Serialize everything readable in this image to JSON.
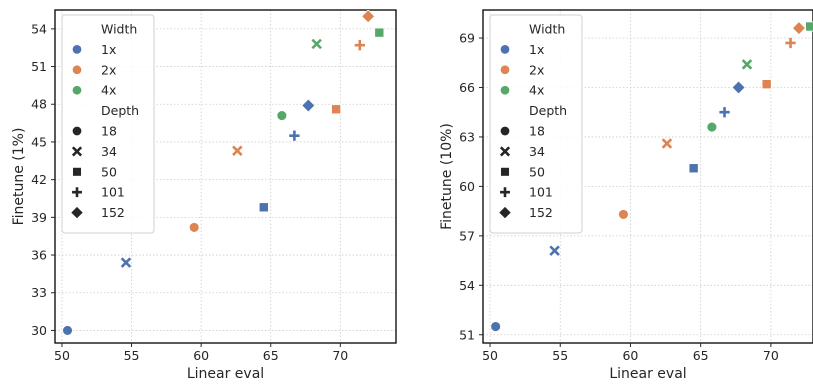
{
  "colors": {
    "1x": "#4c72b0",
    "2x": "#dd8452",
    "4x": "#55a868",
    "marker_neutral": "#262626",
    "grid": "#cccccc",
    "frame": "#000000"
  },
  "legend": {
    "width_title": "Width",
    "width_items": [
      {
        "label": "1x",
        "color_key": "1x"
      },
      {
        "label": "2x",
        "color_key": "2x"
      },
      {
        "label": "4x",
        "color_key": "4x"
      }
    ],
    "depth_title": "Depth",
    "depth_items": [
      {
        "label": "18",
        "shape": "circle"
      },
      {
        "label": "34",
        "shape": "x"
      },
      {
        "label": "50",
        "shape": "square"
      },
      {
        "label": "101",
        "shape": "plus"
      },
      {
        "label": "152",
        "shape": "diamond"
      }
    ]
  },
  "chart_data": [
    {
      "type": "scatter",
      "xlabel": "Linear eval",
      "ylabel": "Finetune (1%)",
      "xlim": [
        49.5,
        74
      ],
      "ylim": [
        29,
        55.5
      ],
      "xticks": [
        50,
        55,
        60,
        65,
        70
      ],
      "yticks": [
        30,
        33,
        36,
        39,
        42,
        45,
        48,
        51,
        54
      ],
      "grid": true,
      "legend_position": "top-left",
      "points": [
        {
          "x": 50.4,
          "y": 30.0,
          "width": "1x",
          "depth": "18"
        },
        {
          "x": 54.6,
          "y": 35.4,
          "width": "1x",
          "depth": "34"
        },
        {
          "x": 64.5,
          "y": 39.8,
          "width": "1x",
          "depth": "50"
        },
        {
          "x": 66.7,
          "y": 45.5,
          "width": "1x",
          "depth": "101"
        },
        {
          "x": 67.7,
          "y": 47.9,
          "width": "1x",
          "depth": "152"
        },
        {
          "x": 59.5,
          "y": 38.2,
          "width": "2x",
          "depth": "18"
        },
        {
          "x": 62.6,
          "y": 44.3,
          "width": "2x",
          "depth": "34"
        },
        {
          "x": 69.7,
          "y": 47.6,
          "width": "2x",
          "depth": "50"
        },
        {
          "x": 71.4,
          "y": 52.7,
          "width": "2x",
          "depth": "101"
        },
        {
          "x": 72.0,
          "y": 55.0,
          "width": "2x",
          "depth": "152"
        },
        {
          "x": 65.8,
          "y": 47.1,
          "width": "4x",
          "depth": "18"
        },
        {
          "x": 68.3,
          "y": 52.8,
          "width": "4x",
          "depth": "34"
        },
        {
          "x": 72.8,
          "y": 53.7,
          "width": "4x",
          "depth": "50"
        }
      ]
    },
    {
      "type": "scatter",
      "xlabel": "Linear eval",
      "ylabel": "Finetune (10%)",
      "xlim": [
        49.5,
        73
      ],
      "ylim": [
        50.5,
        70.7
      ],
      "xticks": [
        50,
        55,
        60,
        65,
        70
      ],
      "yticks": [
        51,
        54,
        57,
        60,
        63,
        66,
        69
      ],
      "grid": true,
      "legend_position": "top-left",
      "points": [
        {
          "x": 50.4,
          "y": 51.5,
          "width": "1x",
          "depth": "18"
        },
        {
          "x": 54.6,
          "y": 56.1,
          "width": "1x",
          "depth": "34"
        },
        {
          "x": 64.5,
          "y": 61.1,
          "width": "1x",
          "depth": "50"
        },
        {
          "x": 66.7,
          "y": 64.5,
          "width": "1x",
          "depth": "101"
        },
        {
          "x": 67.7,
          "y": 66.0,
          "width": "1x",
          "depth": "152"
        },
        {
          "x": 59.5,
          "y": 58.3,
          "width": "2x",
          "depth": "18"
        },
        {
          "x": 62.6,
          "y": 62.6,
          "width": "2x",
          "depth": "34"
        },
        {
          "x": 69.7,
          "y": 66.2,
          "width": "2x",
          "depth": "50"
        },
        {
          "x": 71.4,
          "y": 68.7,
          "width": "2x",
          "depth": "101"
        },
        {
          "x": 72.0,
          "y": 69.6,
          "width": "2x",
          "depth": "152"
        },
        {
          "x": 65.8,
          "y": 63.6,
          "width": "4x",
          "depth": "18"
        },
        {
          "x": 68.3,
          "y": 67.4,
          "width": "4x",
          "depth": "34"
        },
        {
          "x": 72.8,
          "y": 69.7,
          "width": "4x",
          "depth": "50"
        }
      ]
    }
  ]
}
